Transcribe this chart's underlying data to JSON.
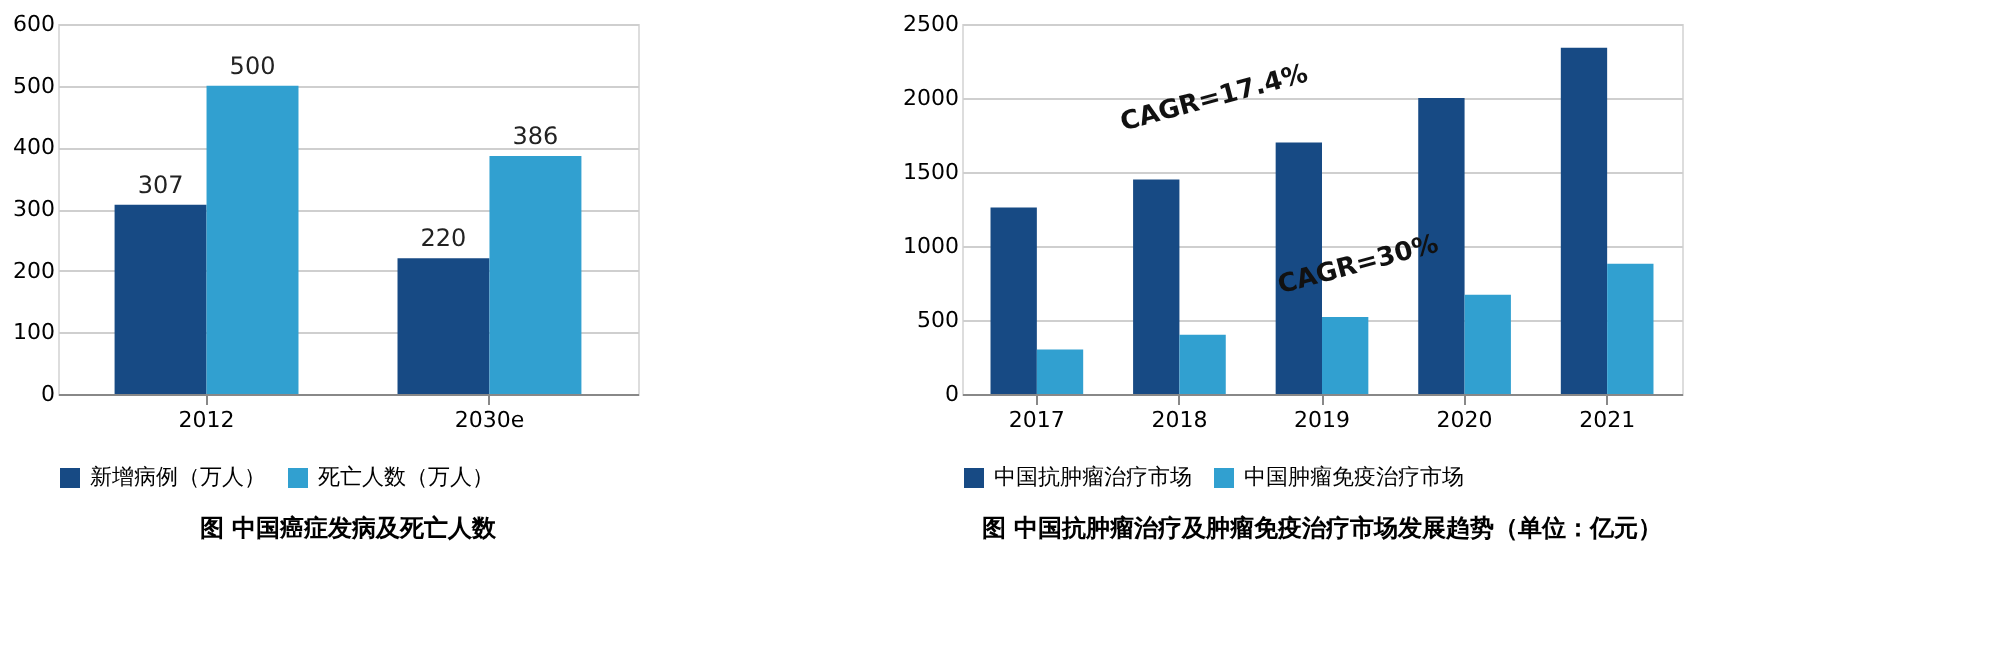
{
  "chart_data": [
    {
      "type": "bar",
      "title": "图 中国癌症发病及死亡人数",
      "categories": [
        "2012",
        "2030e"
      ],
      "series": [
        {
          "name": "新增病例（万人）",
          "color": "#174a84",
          "values": [
            307,
            220
          ]
        },
        {
          "name": "死亡人数（万人）",
          "color": "#31a0d0",
          "values": [
            500,
            386
          ]
        }
      ],
      "ylim": [
        0,
        600
      ],
      "yticks": [
        0,
        100,
        200,
        300,
        400,
        500,
        600
      ],
      "grid": "y",
      "legend": "bottom",
      "data_labels": true
    },
    {
      "type": "bar",
      "title": "图 中国抗肿瘤治疗及肿瘤免疫治疗市场发展趋势（单位：亿元）",
      "categories": [
        "2017",
        "2018",
        "2019",
        "2020",
        "2021"
      ],
      "series": [
        {
          "name": "中国抗肿瘤治疗市场",
          "color": "#174a84",
          "values": [
            1260,
            1450,
            1700,
            2000,
            2340
          ]
        },
        {
          "name": "中国肿瘤免疫治疗市场",
          "color": "#31a0d0",
          "values": [
            300,
            400,
            520,
            670,
            880
          ]
        }
      ],
      "ylim": [
        0,
        2500
      ],
      "yticks": [
        0,
        500,
        1000,
        1500,
        2000,
        2500
      ],
      "grid": "y",
      "legend": "bottom",
      "annotations": [
        "CAGR=17.4%",
        "CAGR=30%"
      ]
    }
  ]
}
